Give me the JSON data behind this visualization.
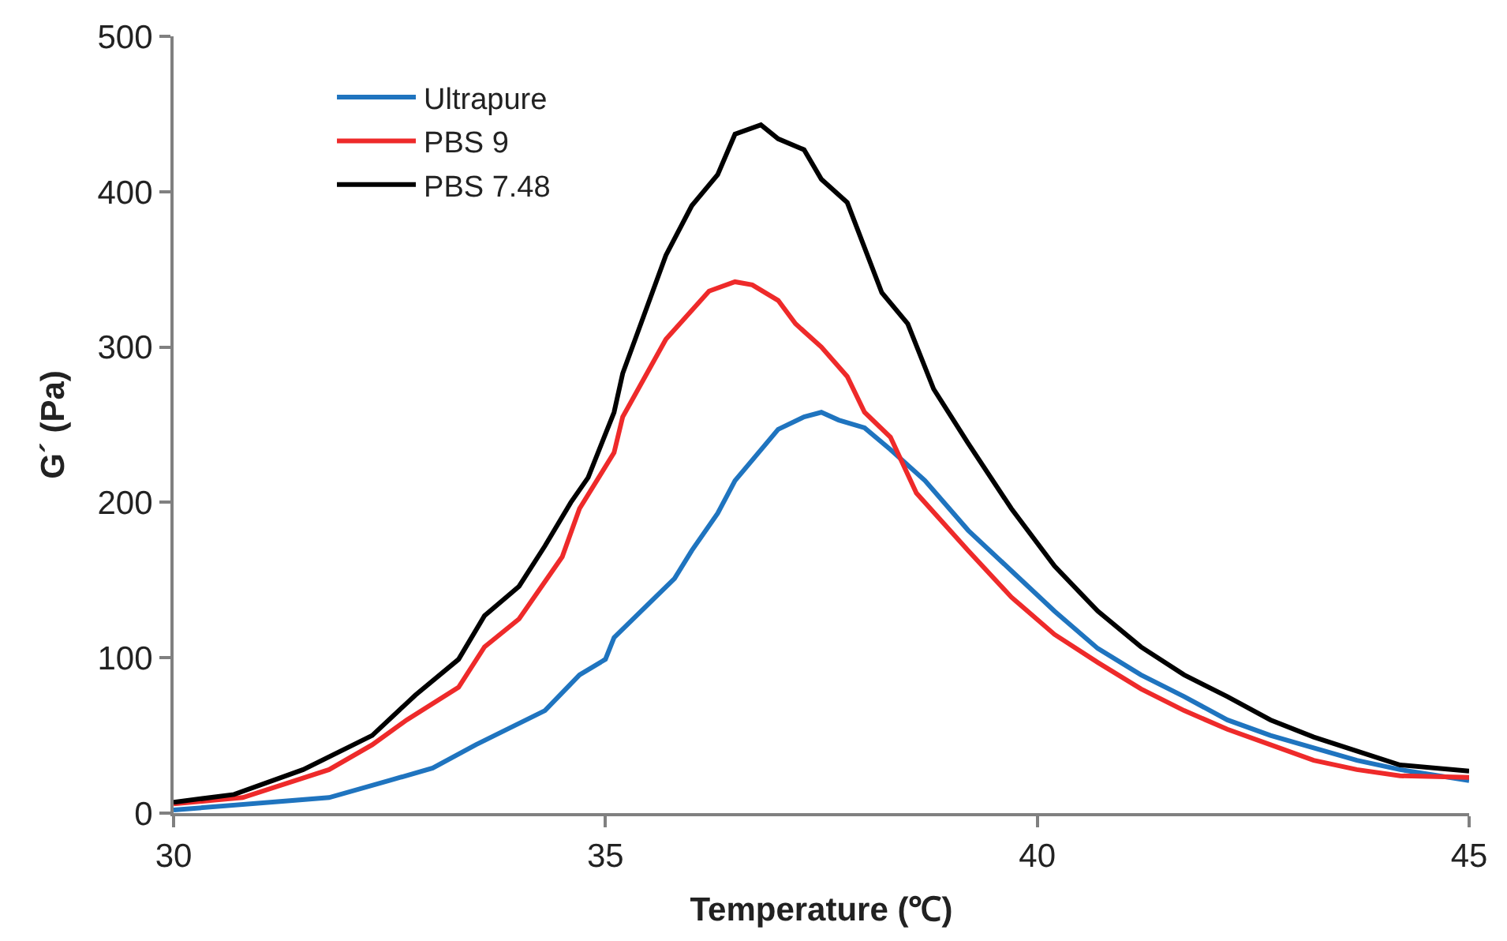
{
  "chart_data": {
    "type": "line",
    "xlabel": "Temperature (℃)",
    "ylabel": "G´ (Pa)",
    "xlim": [
      30,
      45
    ],
    "xticks": [
      30,
      35,
      40,
      45
    ],
    "ylim": [
      0,
      500
    ],
    "yticks": [
      0,
      100,
      200,
      300,
      400,
      500
    ],
    "legend": "top left",
    "marker": "none",
    "line_style": "solid",
    "series": [
      {
        "name": "Ultrapure",
        "color": "#1f74bf",
        "x": [
          30,
          31.8,
          32.5,
          33,
          33.5,
          34.3,
          34.7,
          35,
          35.1,
          35.8,
          36,
          36.3,
          36.5,
          37,
          37.3,
          37.5,
          37.7,
          38,
          38.3,
          38.7,
          39.2,
          39.7,
          40.2,
          40.7,
          41.2,
          41.7,
          42.2,
          42.7,
          43.2,
          43.7,
          44.2,
          45
        ],
        "values": [
          2,
          10,
          21,
          29,
          44,
          66,
          89,
          99,
          113,
          151,
          169,
          193,
          214,
          247,
          255,
          258,
          253,
          248,
          234,
          214,
          182,
          156,
          130,
          106,
          89,
          75,
          60,
          50,
          42,
          34,
          28,
          21
        ]
      },
      {
        "name": "PBS 9",
        "color": "#ee2a2a",
        "x": [
          30,
          30.8,
          31.8,
          32.3,
          32.7,
          33.3,
          33.6,
          34,
          34.5,
          34.7,
          35.1,
          35.2,
          35.7,
          36.2,
          36.5,
          36.7,
          37,
          37.2,
          37.5,
          37.8,
          38,
          38.3,
          38.6,
          39.2,
          39.7,
          40.2,
          40.7,
          41.2,
          41.7,
          42.2,
          42.7,
          43.2,
          43.7,
          44.2,
          45
        ],
        "values": [
          6,
          10,
          28,
          44,
          60,
          81,
          107,
          125,
          165,
          196,
          232,
          255,
          305,
          336,
          342,
          340,
          330,
          315,
          300,
          281,
          258,
          242,
          206,
          169,
          139,
          115,
          97,
          80,
          66,
          54,
          44,
          34,
          28,
          24,
          23
        ]
      },
      {
        "name": "PBS 7.48",
        "color": "#000000",
        "x": [
          30,
          30.7,
          31.5,
          32.3,
          32.8,
          33.3,
          33.6,
          34,
          34.3,
          34.6,
          34.8,
          35.1,
          35.2,
          35.7,
          36,
          36.3,
          36.5,
          36.8,
          37,
          37.3,
          37.5,
          37.8,
          38.2,
          38.5,
          38.8,
          39.2,
          39.7,
          40.2,
          40.7,
          41.2,
          41.7,
          42.2,
          42.7,
          43.2,
          43.7,
          44.2,
          45
        ],
        "values": [
          7,
          12,
          28,
          50,
          76,
          99,
          127,
          146,
          172,
          200,
          216,
          258,
          283,
          359,
          391,
          411,
          437,
          443,
          434,
          427,
          408,
          393,
          335,
          315,
          273,
          238,
          196,
          159,
          130,
          107,
          89,
          75,
          60,
          49,
          40,
          31,
          27
        ]
      }
    ]
  }
}
